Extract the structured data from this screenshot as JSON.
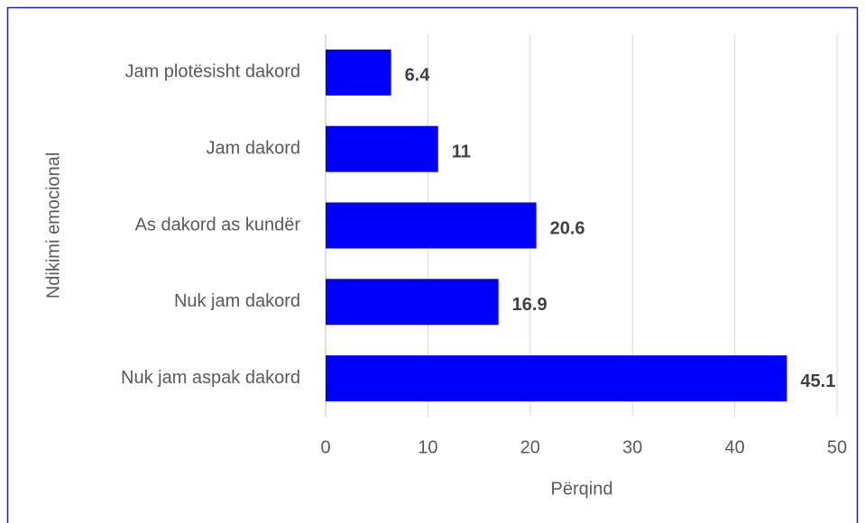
{
  "chart_data": {
    "type": "bar",
    "orientation": "horizontal",
    "categories": [
      "Jam plotësisht dakord",
      "Jam dakord",
      "As dakord as kundër",
      "Nuk jam dakord",
      "Nuk jam aspak dakord"
    ],
    "values": [
      6.4,
      11,
      20.6,
      16.9,
      45.1
    ],
    "color": "#0000ff",
    "xlabel": "Përqind",
    "ylabel": "Ndikimi emocional",
    "xlim": [
      0,
      50
    ],
    "xticks": [
      0,
      10,
      20,
      30,
      40,
      50
    ],
    "grid": true
  }
}
